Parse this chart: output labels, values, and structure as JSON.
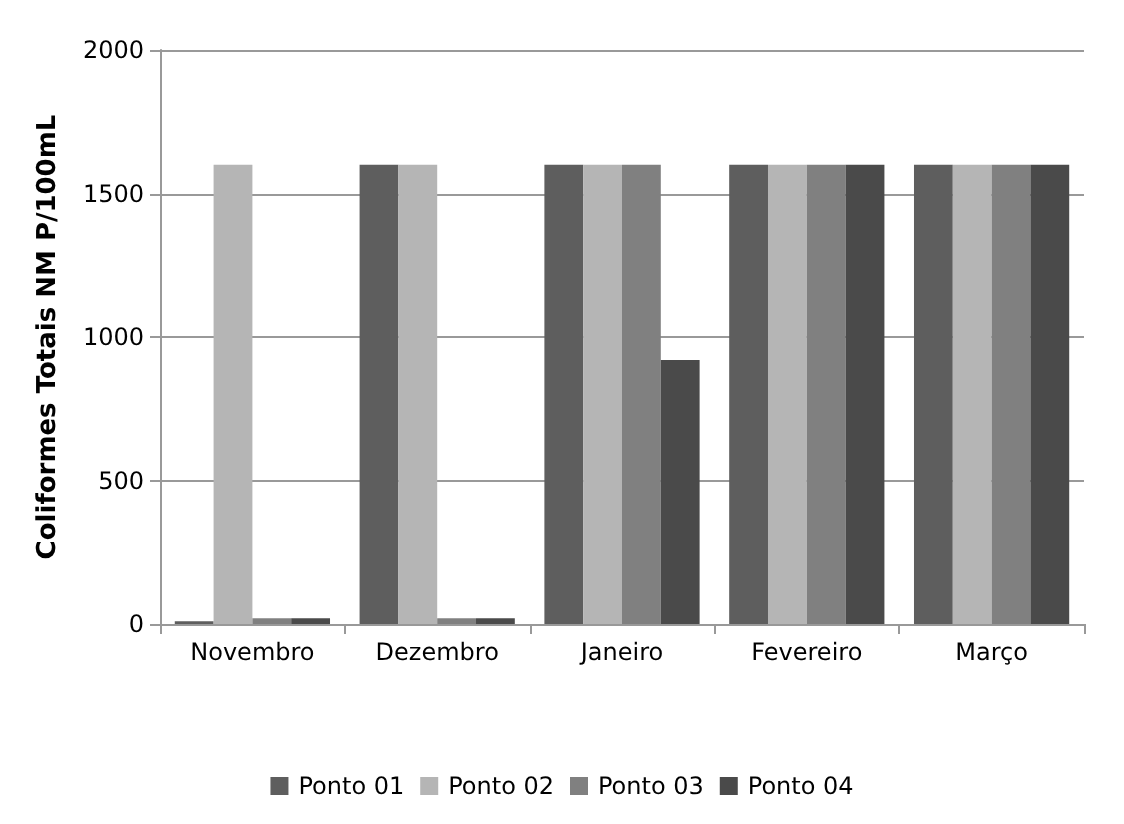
{
  "chart_data": {
    "type": "bar",
    "ylabel": "Coliformes Totais NM P/100mL",
    "categories": [
      "Novembro",
      "Dezembro",
      "Janeiro",
      "Fevereiro",
      "Março"
    ],
    "series": [
      {
        "name": "Ponto 01",
        "color": "#5e5e5e",
        "values": [
          10,
          1600,
          1600,
          1600,
          1600
        ]
      },
      {
        "name": "Ponto 02",
        "color": "#b5b5b5",
        "values": [
          1600,
          1600,
          1600,
          1600,
          1600
        ]
      },
      {
        "name": "Ponto 03",
        "color": "#808080",
        "values": [
          20,
          20,
          1600,
          1600,
          1600
        ]
      },
      {
        "name": "Ponto 04",
        "color": "#4a4a4a",
        "values": [
          20,
          20,
          920,
          1600,
          1600
        ]
      }
    ],
    "ylim": [
      0,
      2000
    ],
    "yticks": [
      0,
      500,
      1000,
      1500,
      2000
    ],
    "grid": "y",
    "legend": "bottom"
  }
}
